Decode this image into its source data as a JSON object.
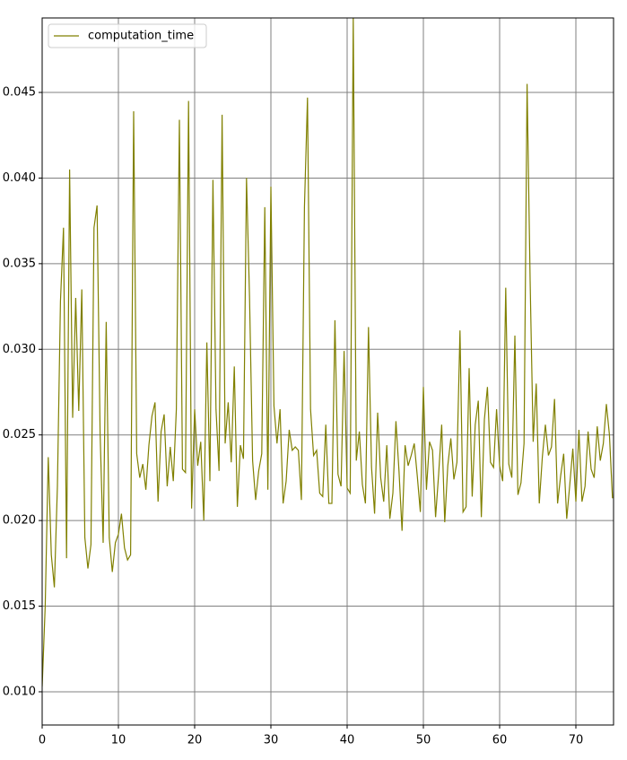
{
  "chart_data": {
    "type": "line",
    "x": [
      0,
      0.4,
      0.8,
      1.2,
      1.6,
      2,
      2.4,
      2.8,
      3.2,
      3.6,
      4,
      4.4,
      4.8,
      5.2,
      5.6,
      6,
      6.4,
      6.8,
      7.2,
      7.6,
      8,
      8.4,
      8.8,
      9.2,
      9.6,
      10,
      10.4,
      10.8,
      11.2,
      11.6,
      12,
      12.4,
      12.8,
      13.2,
      13.6,
      14,
      14.4,
      14.8,
      15.2,
      15.6,
      16,
      16.4,
      16.8,
      17.2,
      17.6,
      18,
      18.4,
      18.8,
      19.2,
      19.6,
      20,
      20.4,
      20.8,
      21.2,
      21.6,
      22,
      22.4,
      22.8,
      23.2,
      23.6,
      24,
      24.4,
      24.8,
      25.2,
      25.6,
      26,
      26.4,
      26.8,
      27.2,
      27.6,
      28,
      28.4,
      28.8,
      29.2,
      29.6,
      30,
      30.4,
      30.8,
      31.2,
      31.6,
      32,
      32.4,
      32.8,
      33.2,
      33.6,
      34,
      34.4,
      34.8,
      35.2,
      35.6,
      36,
      36.4,
      36.8,
      37.2,
      37.6,
      38,
      38.4,
      38.8,
      39.2,
      39.6,
      40,
      40.4,
      40.8,
      41.2,
      41.6,
      42,
      42.4,
      42.8,
      43.2,
      43.6,
      44,
      44.4,
      44.8,
      45.2,
      45.6,
      46,
      46.4,
      46.8,
      47.2,
      47.6,
      48,
      48.4,
      48.8,
      49.2,
      49.6,
      50,
      50.4,
      50.8,
      51.2,
      51.6,
      52,
      52.4,
      52.8,
      53.2,
      53.6,
      54,
      54.4,
      54.8,
      55.2,
      55.6,
      56,
      56.4,
      56.8,
      57.2,
      57.6,
      58,
      58.4,
      58.8,
      59.2,
      59.6,
      60,
      60.4,
      60.8,
      61.2,
      61.6,
      62,
      62.4,
      62.8,
      63.2,
      63.6,
      64,
      64.4,
      64.8,
      65.2,
      65.6,
      66,
      66.4,
      66.8,
      67.2,
      67.6,
      68,
      68.4,
      68.8,
      69.2,
      69.6,
      70,
      70.4,
      70.8,
      71.2,
      71.6,
      72,
      72.4,
      72.8,
      73.2,
      73.6,
      74,
      74.4,
      74.8
    ],
    "series": [
      {
        "name": "computation_time",
        "color": "#808000",
        "values": [
          0.0103,
          0.015,
          0.0237,
          0.018,
          0.0161,
          0.022,
          0.0328,
          0.0371,
          0.0178,
          0.0405,
          0.026,
          0.033,
          0.0264,
          0.0335,
          0.019,
          0.0172,
          0.0186,
          0.0371,
          0.0384,
          0.0251,
          0.0187,
          0.0316,
          0.019,
          0.017,
          0.0187,
          0.0192,
          0.0204,
          0.0184,
          0.0177,
          0.018,
          0.0439,
          0.0239,
          0.0225,
          0.0233,
          0.0218,
          0.0244,
          0.0261,
          0.0269,
          0.0211,
          0.0252,
          0.0262,
          0.022,
          0.0243,
          0.0223,
          0.0265,
          0.0434,
          0.023,
          0.0228,
          0.0445,
          0.0207,
          0.0265,
          0.0232,
          0.0246,
          0.02,
          0.0304,
          0.0223,
          0.0399,
          0.0265,
          0.0229,
          0.0437,
          0.0245,
          0.0269,
          0.0234,
          0.029,
          0.0208,
          0.0244,
          0.0236,
          0.04,
          0.033,
          0.0235,
          0.0212,
          0.0229,
          0.0239,
          0.0383,
          0.0218,
          0.0395,
          0.0267,
          0.0245,
          0.0265,
          0.021,
          0.0223,
          0.0253,
          0.0241,
          0.0243,
          0.0241,
          0.0212,
          0.0383,
          0.0447,
          0.0265,
          0.0238,
          0.0241,
          0.0216,
          0.0214,
          0.0256,
          0.021,
          0.021,
          0.0317,
          0.0227,
          0.022,
          0.0299,
          0.0219,
          0.0216,
          0.0494,
          0.0235,
          0.0252,
          0.0221,
          0.021,
          0.0313,
          0.0231,
          0.0204,
          0.0263,
          0.0225,
          0.0211,
          0.0244,
          0.0201,
          0.0216,
          0.0258,
          0.0229,
          0.0194,
          0.0244,
          0.0232,
          0.0238,
          0.0245,
          0.0226,
          0.0205,
          0.0278,
          0.0218,
          0.0246,
          0.0241,
          0.0202,
          0.0227,
          0.0256,
          0.0199,
          0.0232,
          0.0248,
          0.0224,
          0.0234,
          0.0311,
          0.0205,
          0.0208,
          0.0289,
          0.0214,
          0.0256,
          0.027,
          0.0202,
          0.0259,
          0.0278,
          0.0234,
          0.0231,
          0.0265,
          0.0232,
          0.0223,
          0.0336,
          0.0233,
          0.0225,
          0.0308,
          0.0215,
          0.0222,
          0.0245,
          0.0455,
          0.034,
          0.0246,
          0.028,
          0.021,
          0.0237,
          0.0256,
          0.0238,
          0.0243,
          0.0271,
          0.021,
          0.0226,
          0.0239,
          0.0201,
          0.0221,
          0.0242,
          0.0211,
          0.0253,
          0.0211,
          0.022,
          0.0252,
          0.023,
          0.0225,
          0.0255,
          0.0235,
          0.0245,
          0.0268,
          0.025,
          0.0213
        ]
      }
    ],
    "xlim": [
      0,
      74.94
    ],
    "xticks": [
      0,
      10,
      20,
      30,
      40,
      50,
      60,
      70
    ],
    "ylim": [
      0.00806,
      0.04935
    ],
    "yticks": [
      {
        "value": 0.01,
        "label": "0.010"
      },
      0.015,
      {
        "value": 0.02,
        "label": "0.020"
      },
      0.025,
      {
        "value": 0.03,
        "label": "0.030"
      },
      0.035,
      {
        "value": 0.04,
        "label": "0.040"
      },
      0.045
    ],
    "grid": true,
    "legend": "upper left"
  }
}
